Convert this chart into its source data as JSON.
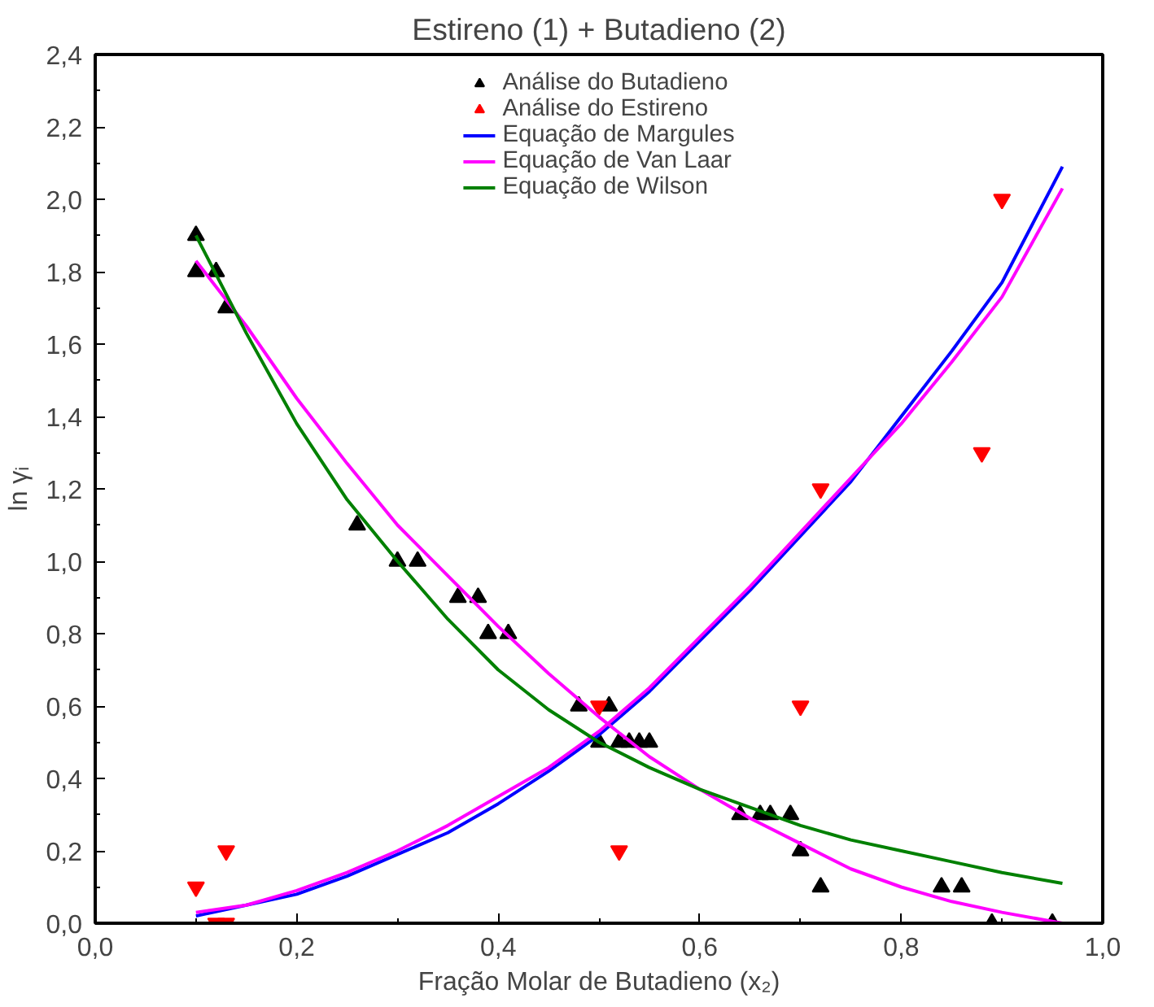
{
  "chart_data": {
    "type": "scatter",
    "title": "Estireno (1) + Butadieno (2)",
    "xlabel": "Fração Molar de Butadieno (x₂)",
    "ylabel": "ln γᵢ",
    "xlim": [
      0,
      1.0
    ],
    "ylim": [
      0,
      2.4
    ],
    "xticks": [
      {
        "value": 0,
        "label": "0,0"
      },
      {
        "value": 0.2,
        "label": "0,2"
      },
      {
        "value": 0.4,
        "label": "0,4"
      },
      {
        "value": 0.6,
        "label": "0,6"
      },
      {
        "value": 0.8,
        "label": "0,8"
      },
      {
        "value": 1.0,
        "label": "1,0"
      }
    ],
    "yticks": [
      {
        "value": 0,
        "label": "0,0"
      },
      {
        "value": 0.2,
        "label": "0,2"
      },
      {
        "value": 0.4,
        "label": "0,4"
      },
      {
        "value": 0.6,
        "label": "0,6"
      },
      {
        "value": 0.8,
        "label": "0,8"
      },
      {
        "value": 1.0,
        "label": "1,0"
      },
      {
        "value": 1.2,
        "label": "1,2"
      },
      {
        "value": 1.4,
        "label": "1,4"
      },
      {
        "value": 1.6,
        "label": "1,6"
      },
      {
        "value": 1.8,
        "label": "1,8"
      },
      {
        "value": 2.0,
        "label": "2,0"
      },
      {
        "value": 2.2,
        "label": "2,2"
      },
      {
        "value": 2.4,
        "label": "2,4"
      }
    ],
    "grid": false,
    "legend": "top",
    "series": [
      {
        "name": "Análise do Butadieno",
        "marker": "triangle",
        "color": "#000000",
        "x": [
          0.1,
          0.1,
          0.12,
          0.13,
          0.26,
          0.3,
          0.32,
          0.36,
          0.38,
          0.39,
          0.41,
          0.48,
          0.5,
          0.51,
          0.52,
          0.53,
          0.54,
          0.55,
          0.64,
          0.66,
          0.67,
          0.69,
          0.7,
          0.72,
          0.84,
          0.86,
          0.89,
          0.95
        ],
        "values": [
          1.9,
          1.8,
          1.8,
          1.7,
          1.1,
          1.0,
          1.0,
          0.9,
          0.9,
          0.8,
          0.8,
          0.6,
          0.5,
          0.6,
          0.5,
          0.5,
          0.5,
          0.5,
          0.3,
          0.3,
          0.3,
          0.3,
          0.2,
          0.1,
          0.1,
          0.1,
          0.0,
          0.0
        ]
      },
      {
        "name": "Análise do Estireno",
        "marker": "triangle",
        "color": "#ff0000",
        "x": [
          0.1,
          0.12,
          0.13,
          0.13,
          0.5,
          0.52,
          0.7,
          0.72,
          0.88,
          0.9
        ],
        "values": [
          0.1,
          0.0,
          0.0,
          0.2,
          0.6,
          0.2,
          0.6,
          1.2,
          1.3,
          2.0
        ]
      },
      {
        "name": "Equação de Margules",
        "type": "line",
        "color": "#0000ff",
        "x": [
          0.1,
          0.15,
          0.2,
          0.25,
          0.3,
          0.35,
          0.4,
          0.45,
          0.5,
          0.55,
          0.6,
          0.65,
          0.7,
          0.75,
          0.8,
          0.85,
          0.9,
          0.96
        ],
        "values": [
          0.02,
          0.05,
          0.08,
          0.13,
          0.19,
          0.25,
          0.33,
          0.42,
          0.52,
          0.64,
          0.78,
          0.92,
          1.07,
          1.22,
          1.4,
          1.58,
          1.77,
          2.09
        ]
      },
      {
        "name": "Equação de Van Laar",
        "type": "line",
        "color": "#ff00ff",
        "x": [
          0.1,
          0.15,
          0.2,
          0.25,
          0.3,
          0.35,
          0.4,
          0.45,
          0.5,
          0.55,
          0.6,
          0.65,
          0.7,
          0.75,
          0.8,
          0.85,
          0.9,
          0.96,
          null,
          0.1,
          0.15,
          0.2,
          0.25,
          0.3,
          0.35,
          0.4,
          0.45,
          0.5,
          0.55,
          0.6,
          0.65,
          0.7,
          0.75,
          0.8,
          0.85,
          0.9,
          0.96
        ],
        "values": [
          0.03,
          0.05,
          0.09,
          0.14,
          0.2,
          0.27,
          0.35,
          0.43,
          0.53,
          0.65,
          0.79,
          0.93,
          1.08,
          1.23,
          1.38,
          1.55,
          1.73,
          2.03,
          null,
          1.83,
          1.65,
          1.45,
          1.27,
          1.1,
          0.96,
          0.82,
          0.69,
          0.57,
          0.46,
          0.37,
          0.29,
          0.22,
          0.15,
          0.1,
          0.06,
          0.03,
          0.0
        ]
      },
      {
        "name": "Equação de Wilson",
        "type": "line",
        "color": "#008000",
        "x": [
          0.1,
          0.15,
          0.2,
          0.25,
          0.3,
          0.35,
          0.4,
          0.45,
          0.5,
          0.55,
          0.6,
          0.65,
          0.7,
          0.75,
          0.8,
          0.85,
          0.9,
          0.96
        ],
        "values": [
          1.9,
          1.63,
          1.38,
          1.17,
          1.0,
          0.84,
          0.7,
          0.59,
          0.5,
          0.43,
          0.37,
          0.32,
          0.27,
          0.23,
          0.2,
          0.17,
          0.14,
          0.11
        ]
      }
    ]
  }
}
